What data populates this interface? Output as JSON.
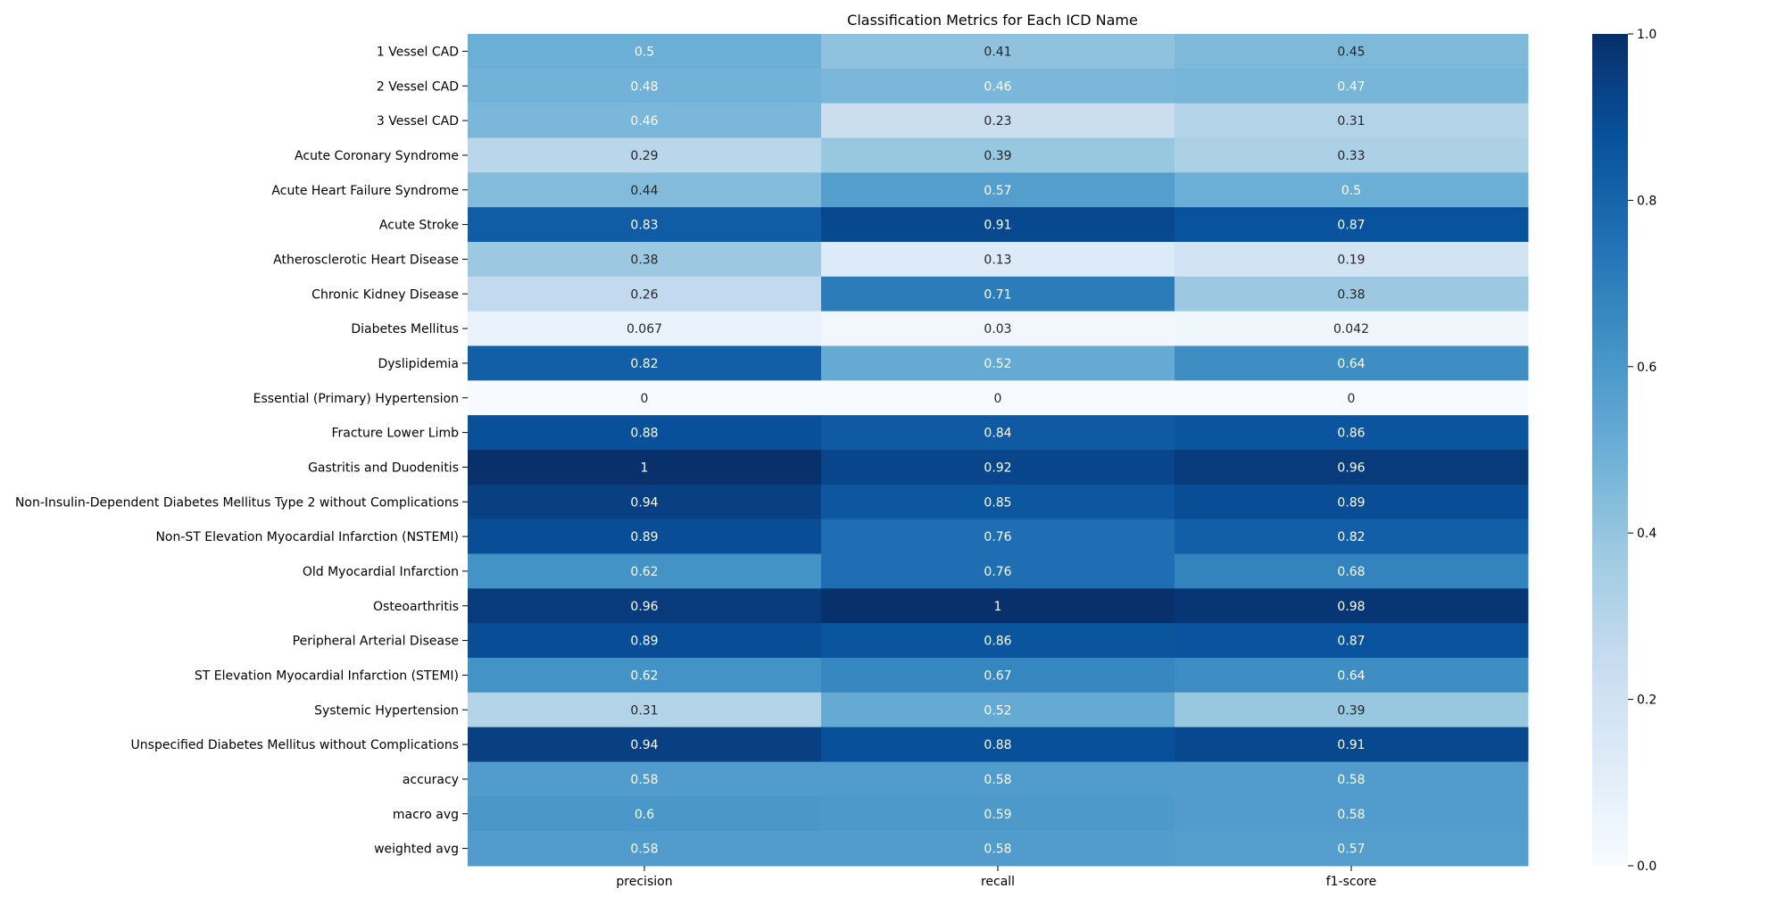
{
  "chart_data": {
    "type": "heatmap",
    "title": "Classification Metrics for Each ICD Name",
    "xlabel": "",
    "ylabel": "",
    "columns": [
      "precision",
      "recall",
      "f1-score"
    ],
    "rows": [
      "1 Vessel CAD",
      "2 Vessel CAD",
      "3 Vessel CAD",
      "Acute Coronary Syndrome",
      "Acute Heart Failure Syndrome",
      "Acute Stroke",
      "Atherosclerotic Heart Disease",
      "Chronic Kidney Disease",
      "Diabetes Mellitus",
      "Dyslipidemia",
      "Essential (Primary) Hypertension",
      "Fracture Lower Limb",
      "Gastritis and Duodenitis",
      "Non-Insulin-Dependent Diabetes Mellitus Type 2 without Complications",
      "Non-ST Elevation Myocardial Infarction (NSTEMI)",
      "Old Myocardial Infarction",
      "Osteoarthritis",
      "Peripheral Arterial Disease",
      "ST Elevation Myocardial Infarction (STEMI)",
      "Systemic Hypertension",
      "Unspecified Diabetes Mellitus without Complications",
      "accuracy",
      "macro avg",
      "weighted avg"
    ],
    "values": [
      [
        0.5,
        0.41,
        0.45
      ],
      [
        0.48,
        0.46,
        0.47
      ],
      [
        0.46,
        0.23,
        0.31
      ],
      [
        0.29,
        0.39,
        0.33
      ],
      [
        0.44,
        0.57,
        0.5
      ],
      [
        0.83,
        0.91,
        0.87
      ],
      [
        0.38,
        0.13,
        0.19
      ],
      [
        0.26,
        0.71,
        0.38
      ],
      [
        0.067,
        0.03,
        0.042
      ],
      [
        0.82,
        0.52,
        0.64
      ],
      [
        0,
        0,
        0
      ],
      [
        0.88,
        0.84,
        0.86
      ],
      [
        1,
        0.92,
        0.96
      ],
      [
        0.94,
        0.85,
        0.89
      ],
      [
        0.89,
        0.76,
        0.82
      ],
      [
        0.62,
        0.76,
        0.68
      ],
      [
        0.96,
        1,
        0.98
      ],
      [
        0.89,
        0.86,
        0.87
      ],
      [
        0.62,
        0.67,
        0.64
      ],
      [
        0.31,
        0.52,
        0.39
      ],
      [
        0.94,
        0.88,
        0.91
      ],
      [
        0.58,
        0.58,
        0.58
      ],
      [
        0.6,
        0.59,
        0.58
      ],
      [
        0.58,
        0.58,
        0.57
      ]
    ],
    "labels": [
      [
        "0.5",
        "0.41",
        "0.45"
      ],
      [
        "0.48",
        "0.46",
        "0.47"
      ],
      [
        "0.46",
        "0.23",
        "0.31"
      ],
      [
        "0.29",
        "0.39",
        "0.33"
      ],
      [
        "0.44",
        "0.57",
        "0.5"
      ],
      [
        "0.83",
        "0.91",
        "0.87"
      ],
      [
        "0.38",
        "0.13",
        "0.19"
      ],
      [
        "0.26",
        "0.71",
        "0.38"
      ],
      [
        "0.067",
        "0.03",
        "0.042"
      ],
      [
        "0.82",
        "0.52",
        "0.64"
      ],
      [
        "0",
        "0",
        "0"
      ],
      [
        "0.88",
        "0.84",
        "0.86"
      ],
      [
        "1",
        "0.92",
        "0.96"
      ],
      [
        "0.94",
        "0.85",
        "0.89"
      ],
      [
        "0.89",
        "0.76",
        "0.82"
      ],
      [
        "0.62",
        "0.76",
        "0.68"
      ],
      [
        "0.96",
        "1",
        "0.98"
      ],
      [
        "0.89",
        "0.86",
        "0.87"
      ],
      [
        "0.62",
        "0.67",
        "0.64"
      ],
      [
        "0.31",
        "0.52",
        "0.39"
      ],
      [
        "0.94",
        "0.88",
        "0.91"
      ],
      [
        "0.58",
        "0.58",
        "0.58"
      ],
      [
        "0.6",
        "0.59",
        "0.58"
      ],
      [
        "0.58",
        "0.58",
        "0.57"
      ]
    ],
    "colormap": "Blues",
    "vmin": 0,
    "vmax": 1,
    "colorbar": {
      "ticks": [
        0.0,
        0.2,
        0.4,
        0.6,
        0.8,
        1.0
      ],
      "tick_labels": [
        "0.0",
        "0.2",
        "0.4",
        "0.6",
        "0.8",
        "1.0"
      ]
    },
    "grid": false,
    "legend": "colorbar-right"
  }
}
